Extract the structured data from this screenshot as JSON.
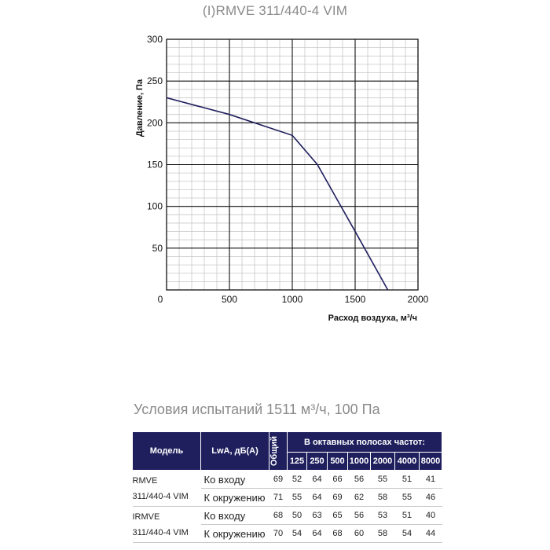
{
  "chart_title": "(I)RMVE 311/440-4 VIM",
  "chart_data": {
    "type": "line",
    "title": "(I)RMVE 311/440-4 VIM",
    "xlabel": "Расход воздуха, м³/ч",
    "ylabel": "Давление, Па",
    "xlim": [
      0,
      2000
    ],
    "ylim": [
      0,
      300
    ],
    "x_ticks": [
      "0",
      "500",
      "1000",
      "1500",
      "2000"
    ],
    "y_ticks": [
      "50",
      "100",
      "150",
      "200",
      "250",
      "300"
    ],
    "grid": true,
    "series": [
      {
        "color": "#1f1f5e",
        "x": [
          0,
          500,
          1000,
          1200,
          1500,
          1760
        ],
        "y": [
          230,
          210,
          185,
          150,
          70,
          0
        ]
      }
    ]
  },
  "test_conditions": "Условия испытаний 1511 м³/ч, 100 Па",
  "table": {
    "header": {
      "model": "Модель",
      "lwa": "LwA, дБ(А)",
      "total": "Общий",
      "octave_title": "В октавных полосах частот:",
      "bands": [
        "125",
        "250",
        "500",
        "1000",
        "2000",
        "4000",
        "8000"
      ]
    },
    "groups": [
      {
        "model": [
          "RMVE",
          "311/440-4 VIM"
        ],
        "rows": [
          {
            "label": "Ко входу",
            "total": "69",
            "values": [
              "52",
              "64",
              "66",
              "56",
              "55",
              "51",
              "41"
            ]
          },
          {
            "label": "К окружению",
            "total": "71",
            "values": [
              "55",
              "64",
              "69",
              "62",
              "58",
              "55",
              "46"
            ]
          }
        ]
      },
      {
        "model": [
          "IRMVE",
          "311/440-4 VIM"
        ],
        "rows": [
          {
            "label": "Ко входу",
            "total": "68",
            "values": [
              "50",
              "63",
              "65",
              "56",
              "53",
              "51",
              "40"
            ]
          },
          {
            "label": "К окружению",
            "total": "70",
            "values": [
              "54",
              "64",
              "68",
              "60",
              "58",
              "54",
              "44"
            ]
          }
        ]
      }
    ]
  }
}
